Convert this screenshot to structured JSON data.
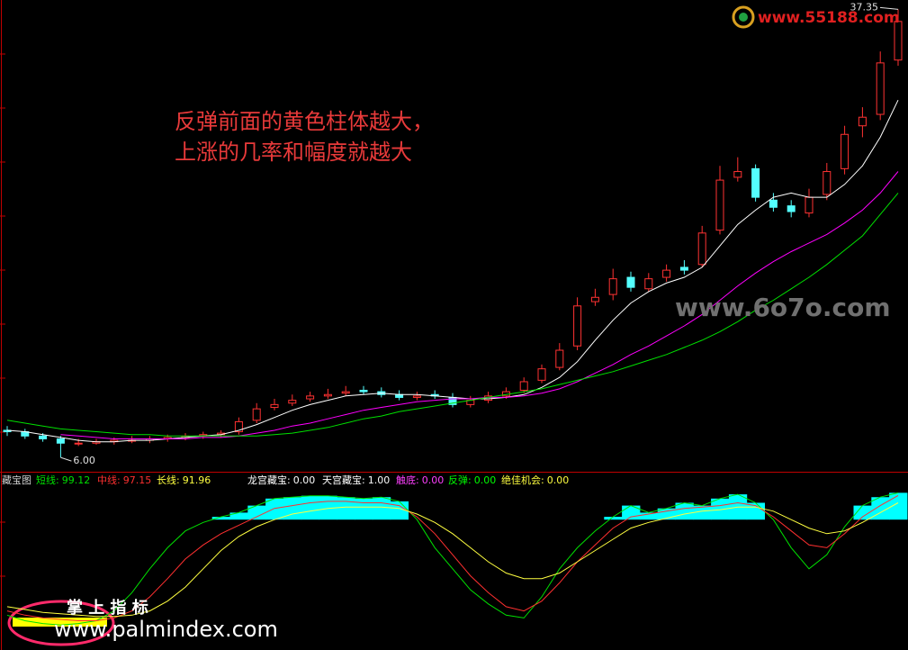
{
  "chart_data": [
    {
      "type": "candlestick",
      "open": [
        7.9,
        7.8,
        7.5,
        7.3,
        7.0,
        7.0,
        7.1,
        7.2,
        7.2,
        7.3,
        7.4,
        7.5,
        7.6,
        7.8,
        8.6,
        9.5,
        9.8,
        10.1,
        10.3,
        10.5,
        10.7,
        10.6,
        10.4,
        10.2,
        10.4,
        10.2,
        9.7,
        10.0,
        10.3,
        10.7,
        11.4,
        12.3,
        13.8,
        16.9,
        17.4,
        18.6,
        17.8,
        18.6,
        19.3,
        19.5,
        21.9,
        25.6,
        26.2,
        24.0,
        23.6,
        23.1,
        24.4,
        26.2,
        29.2,
        30.0,
        33.8
      ],
      "high": [
        8.2,
        8.0,
        7.7,
        7.5,
        7.3,
        7.3,
        7.4,
        7.5,
        7.5,
        7.6,
        7.7,
        7.8,
        7.9,
        8.8,
        9.8,
        10.1,
        10.4,
        10.6,
        10.8,
        11.0,
        11.0,
        10.9,
        10.7,
        10.6,
        10.7,
        10.5,
        10.3,
        10.6,
        10.9,
        11.6,
        12.5,
        14.0,
        17.2,
        17.8,
        19.2,
        19.0,
        18.9,
        19.5,
        19.8,
        22.2,
        26.4,
        27.0,
        26.5,
        24.5,
        24.0,
        24.8,
        26.6,
        29.2,
        30.5,
        34.4,
        37.35
      ],
      "low": [
        7.5,
        7.3,
        7.1,
        6.0,
        6.8,
        6.9,
        6.9,
        7.0,
        7.0,
        7.1,
        7.2,
        7.3,
        7.4,
        7.6,
        8.4,
        9.3,
        9.6,
        9.9,
        10.1,
        10.3,
        10.4,
        10.2,
        10.0,
        10.0,
        10.1,
        9.5,
        9.5,
        9.8,
        10.1,
        10.5,
        11.2,
        12.1,
        13.5,
        16.6,
        17.0,
        17.6,
        17.6,
        18.3,
        18.8,
        19.3,
        21.6,
        25.3,
        23.9,
        23.2,
        22.8,
        22.8,
        24.0,
        25.8,
        28.4,
        29.6,
        33.4
      ],
      "close": [
        7.8,
        7.5,
        7.3,
        7.0,
        7.0,
        7.1,
        7.2,
        7.2,
        7.3,
        7.4,
        7.5,
        7.6,
        7.7,
        8.5,
        9.4,
        9.7,
        10.0,
        10.3,
        10.4,
        10.6,
        10.6,
        10.4,
        10.2,
        10.3,
        10.3,
        9.7,
        10.0,
        10.3,
        10.6,
        11.3,
        12.2,
        13.5,
        16.6,
        17.2,
        18.5,
        17.9,
        18.5,
        19.1,
        19.1,
        21.7,
        25.4,
        26.0,
        24.2,
        23.5,
        23.2,
        24.2,
        26.0,
        28.6,
        29.8,
        33.6,
        36.5
      ],
      "up_color": "#ff3232",
      "down_color": "#54ffff",
      "ylim": [
        5,
        38
      ],
      "series": [
        {
          "color": "#ffffff",
          "values": [
            7.9,
            7.8,
            7.6,
            7.4,
            7.2,
            7.1,
            7.1,
            7.2,
            7.2,
            7.3,
            7.4,
            7.5,
            7.6,
            7.9,
            8.3,
            8.8,
            9.3,
            9.7,
            10.0,
            10.3,
            10.4,
            10.5,
            10.4,
            10.4,
            10.3,
            10.2,
            10.1,
            10.1,
            10.2,
            10.4,
            10.9,
            11.6,
            12.7,
            14.2,
            15.6,
            16.8,
            17.6,
            18.2,
            18.6,
            19.3,
            20.8,
            22.3,
            23.3,
            24.2,
            24.5,
            24.2,
            24.2,
            25.1,
            26.4,
            28.4,
            31.0
          ]
        },
        {
          "color": "#ff00ff",
          "values": [
            null,
            null,
            null,
            7.6,
            7.5,
            7.4,
            7.3,
            7.3,
            7.3,
            7.3,
            7.3,
            7.4,
            7.4,
            7.5,
            7.7,
            7.9,
            8.2,
            8.4,
            8.7,
            9.0,
            9.3,
            9.5,
            9.7,
            9.9,
            10.0,
            10.1,
            10.1,
            10.2,
            10.2,
            10.3,
            10.5,
            10.8,
            11.3,
            11.9,
            12.5,
            13.2,
            13.8,
            14.5,
            15.2,
            16.0,
            17.0,
            18.0,
            18.9,
            19.7,
            20.4,
            21.0,
            21.6,
            22.4,
            23.3,
            24.5,
            26.0
          ]
        },
        {
          "color": "#00e000",
          "values": [
            8.6,
            8.4,
            8.2,
            8.0,
            7.9,
            7.8,
            7.7,
            7.6,
            7.6,
            7.5,
            7.5,
            7.5,
            7.5,
            7.5,
            7.5,
            7.6,
            7.7,
            7.9,
            8.1,
            8.4,
            8.7,
            8.9,
            9.2,
            9.4,
            9.6,
            9.8,
            10.0,
            10.2,
            10.4,
            10.6,
            10.8,
            11.1,
            11.4,
            11.7,
            12.0,
            12.4,
            12.8,
            13.2,
            13.7,
            14.2,
            14.8,
            15.5,
            16.3,
            17.0,
            17.8,
            18.6,
            19.5,
            20.5,
            21.5,
            23.0,
            24.5
          ]
        }
      ],
      "annotations": [
        {
          "value": 37.35,
          "label": "37.35"
        },
        {
          "value": 6,
          "label": "6.00"
        }
      ],
      "note": [
        "反弹前面的黄色柱体越大，",
        "上涨的几率和幅度就越大"
      ]
    },
    {
      "type": "indicator",
      "title": "藏宝图",
      "ylim": [
        0,
        100
      ],
      "readouts": [
        {
          "name": "短线:",
          "value": 99.12,
          "value_label": "99.12",
          "color": "#00e000"
        },
        {
          "name": "中线:",
          "value": 97.15,
          "value_label": "97.15",
          "color": "#ff3030"
        },
        {
          "name": "长线:",
          "value": 91.96,
          "value_label": "91.96",
          "color": "#ffff40"
        },
        {
          "name": "龙宫藏宝:",
          "value": 0,
          "value_label": "0.00",
          "color": "#ffffff"
        },
        {
          "name": "天宫藏宝:",
          "value": 1,
          "value_label": "1.00",
          "color": "#ffffff"
        },
        {
          "name": "触底:",
          "value": 0,
          "value_label": "0.00",
          "color": "#ff40ff"
        },
        {
          "name": "反弹:",
          "value": 0,
          "value_label": "0.00",
          "color": "#00ff00"
        },
        {
          "name": "绝佳机会:",
          "value": 0,
          "value_label": "0.00",
          "color": "#ffff40"
        }
      ],
      "series": [
        {
          "color": "#00e000",
          "values": [
            12,
            8,
            6,
            5,
            6,
            8,
            15,
            28,
            45,
            60,
            72,
            78,
            82,
            85,
            90,
            95,
            96,
            97,
            97,
            96,
            95,
            96,
            93,
            80,
            60,
            45,
            30,
            20,
            12,
            10,
            25,
            45,
            60,
            72,
            82,
            90,
            85,
            88,
            92,
            90,
            95,
            98,
            92,
            80,
            60,
            45,
            55,
            75,
            90,
            96,
            99.12
          ]
        },
        {
          "color": "#ff3030",
          "values": [
            15,
            12,
            10,
            9,
            8,
            8,
            10,
            15,
            25,
            38,
            52,
            62,
            70,
            76,
            82,
            88,
            90,
            92,
            93,
            93,
            92,
            92,
            90,
            82,
            70,
            55,
            40,
            28,
            18,
            15,
            22,
            35,
            50,
            62,
            74,
            82,
            84,
            86,
            88,
            89,
            90,
            92,
            90,
            82,
            72,
            62,
            60,
            70,
            82,
            90,
            97.15
          ]
        },
        {
          "color": "#ffff40",
          "values": [
            18,
            16,
            14,
            13,
            12,
            11,
            11,
            12,
            15,
            22,
            32,
            45,
            58,
            68,
            75,
            80,
            84,
            86,
            88,
            89,
            89,
            89,
            88,
            84,
            78,
            70,
            60,
            50,
            42,
            38,
            38,
            42,
            50,
            58,
            66,
            74,
            78,
            81,
            84,
            86,
            87,
            89,
            89,
            86,
            80,
            74,
            70,
            72,
            78,
            85,
            91.96
          ]
        }
      ],
      "bars": {
        "color": "#00ffff",
        "base": 80,
        "values": [
          null,
          null,
          null,
          null,
          null,
          null,
          null,
          null,
          null,
          null,
          null,
          null,
          82,
          85,
          90,
          95,
          96,
          97,
          97,
          96,
          95,
          96,
          93,
          null,
          null,
          null,
          null,
          null,
          null,
          null,
          null,
          null,
          null,
          null,
          82,
          90,
          85,
          88,
          92,
          90,
          95,
          98,
          92,
          null,
          null,
          null,
          null,
          null,
          90,
          96,
          99.12
        ]
      }
    }
  ],
  "overlay": {
    "watermarks": [
      "www.55188.com",
      "www.6o7o.com",
      "www.palmindex.com",
      "掌 上 指 标"
    ]
  }
}
